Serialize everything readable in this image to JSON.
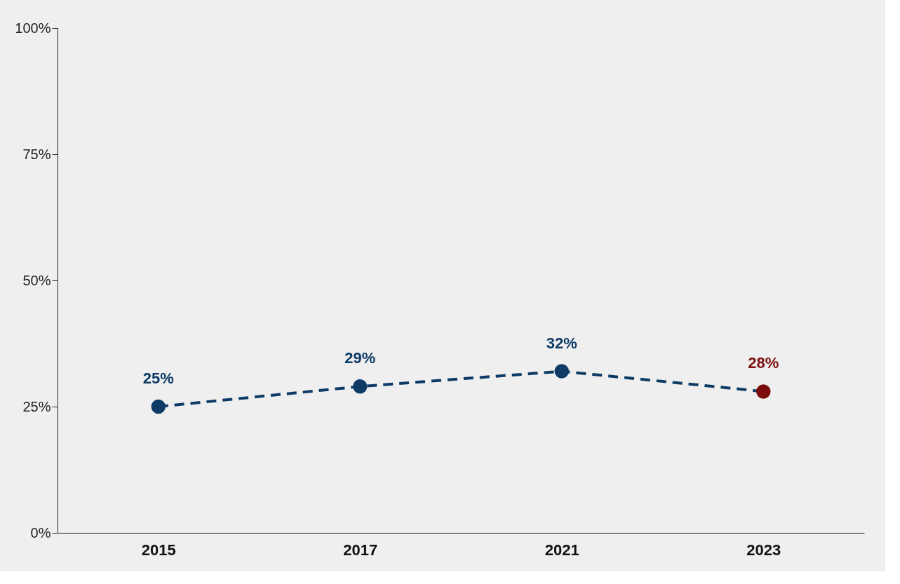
{
  "chart_data": {
    "type": "line",
    "categories": [
      "2015",
      "2017",
      "2021",
      "2023"
    ],
    "series": [
      {
        "color": "#0d3b66",
        "colors": [
          "#0d3b66",
          "#0d3b66",
          "#0d3b66",
          "#7b0c0c"
        ],
        "values": [
          25,
          29,
          32,
          28
        ],
        "value_labels": [
          "25%",
          "29%",
          "32%",
          "28%"
        ]
      }
    ],
    "ylim": [
      0,
      100
    ],
    "yticks": [
      {
        "value": 0,
        "label": "0%"
      },
      {
        "value": 25,
        "label": "25%"
      },
      {
        "value": 50,
        "label": "50%"
      },
      {
        "value": 75,
        "label": "75%"
      },
      {
        "value": 100,
        "label": "100%"
      }
    ],
    "grid": false,
    "marker": "circle",
    "line_style": "dashed"
  }
}
